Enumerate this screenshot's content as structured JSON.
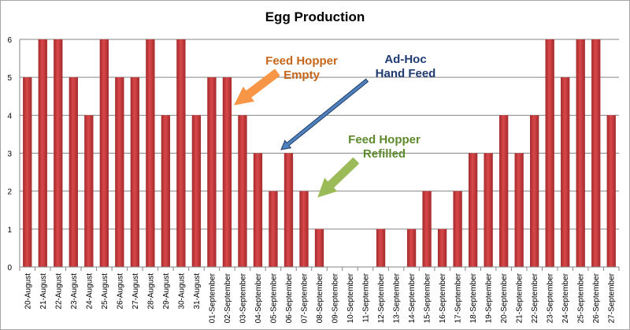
{
  "chart_data": {
    "type": "bar",
    "title": "Egg Production",
    "xlabel": "",
    "ylabel": "",
    "ylim": [
      0,
      6
    ],
    "yticks": [
      0,
      1,
      2,
      3,
      4,
      5,
      6
    ],
    "grid": true,
    "legend": "none",
    "bar_color": "#c0393b",
    "categories": [
      "20-August",
      "21-August",
      "22-August",
      "23-August",
      "24-August",
      "25-August",
      "26-August",
      "27-August",
      "28-August",
      "29-August",
      "30-August",
      "31-August",
      "01-September",
      "02-September",
      "03-September",
      "04-September",
      "05-September",
      "06-September",
      "07-September",
      "08-September",
      "09-September",
      "10-September",
      "11-September",
      "12-September",
      "13-September",
      "14-September",
      "15-September",
      "16-September",
      "17-September",
      "18-September",
      "19-September",
      "20-September",
      "21-September",
      "22-September",
      "23-September",
      "24-September",
      "25-September",
      "26-September",
      "27-September"
    ],
    "values": [
      5,
      6,
      6,
      5,
      4,
      6,
      5,
      5,
      6,
      4,
      6,
      4,
      5,
      5,
      4,
      3,
      2,
      3,
      2,
      1,
      0,
      0,
      0,
      1,
      0,
      1,
      2,
      1,
      2,
      3,
      3,
      4,
      3,
      4,
      6,
      5,
      6,
      6,
      4
    ],
    "annotations": [
      {
        "lines": [
          "Feed Hopper",
          "Empty"
        ],
        "color": "#c5661a",
        "arrow_color": "#f79646",
        "points_to": "02-September"
      },
      {
        "lines": [
          "Ad-Hoc",
          "Hand Feed"
        ],
        "color": "#1f3b72",
        "arrow_color": "#4f81bd",
        "points_to": "06-September"
      },
      {
        "lines": [
          "Feed Hopper",
          "Refilled"
        ],
        "color": "#5e8a2e",
        "arrow_color": "#9bbb59",
        "points_to": "08-September"
      }
    ]
  }
}
